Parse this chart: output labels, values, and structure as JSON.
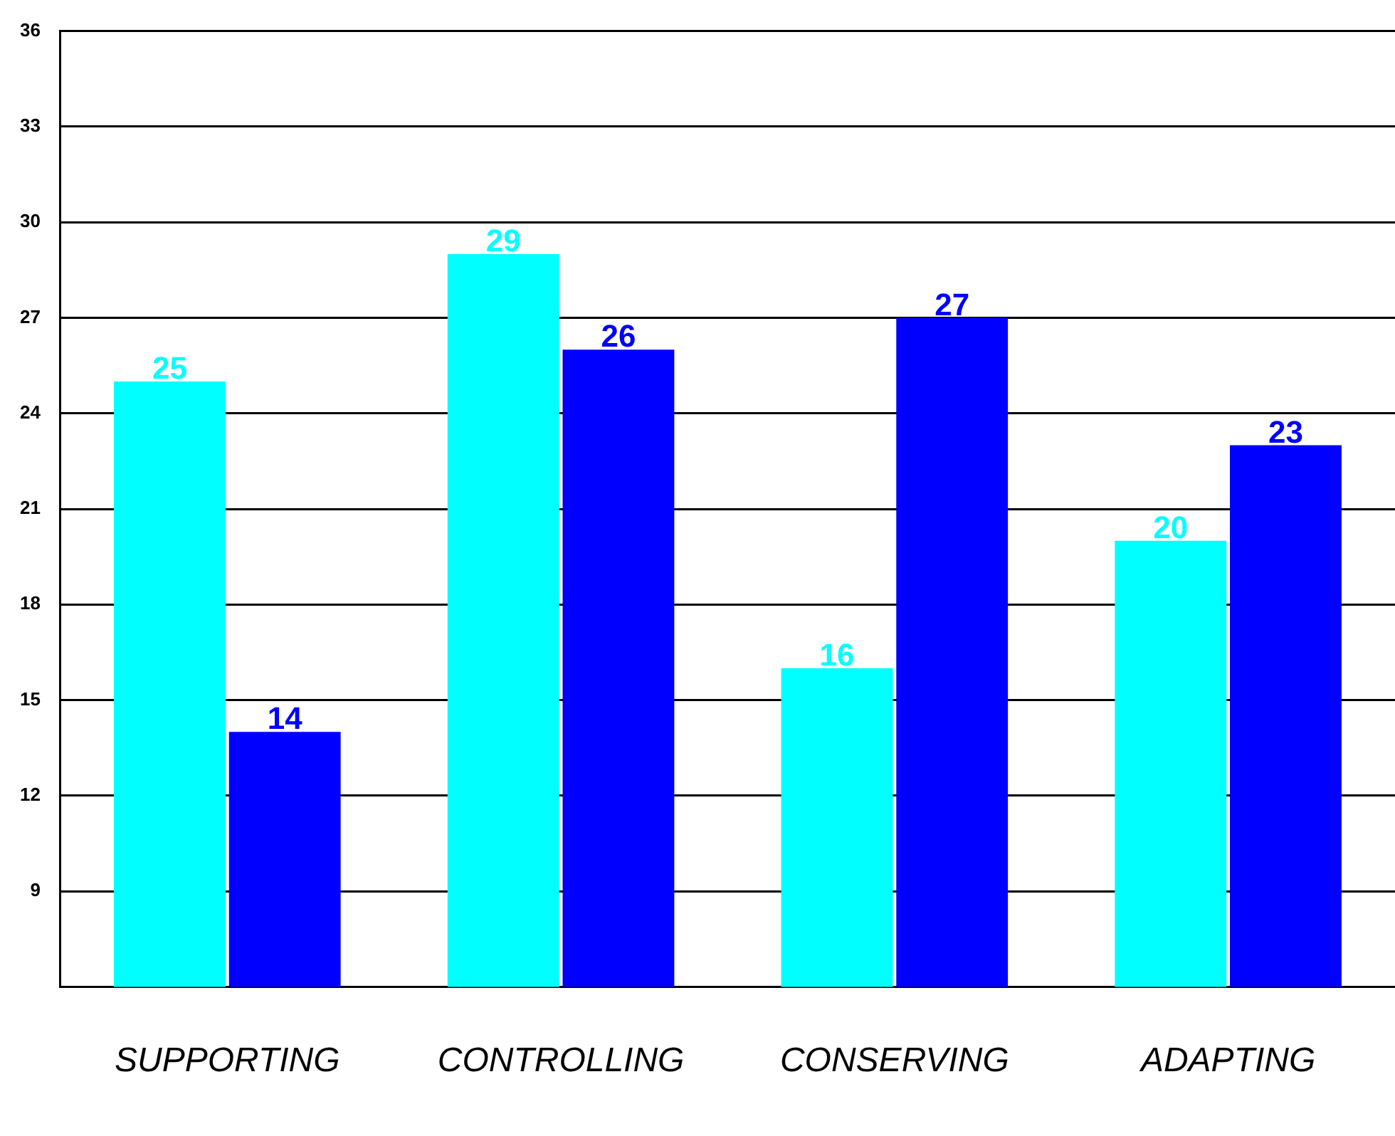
{
  "chart_data": {
    "type": "bar",
    "categories": [
      "SUPPORTING",
      "CONTROLLING",
      "CONSERVING",
      "ADAPTING"
    ],
    "series": [
      {
        "color": "#00ffff",
        "values": [
          25,
          29,
          16,
          20
        ]
      },
      {
        "color": "#0000ff",
        "values": [
          14,
          26,
          27,
          23
        ]
      }
    ],
    "ylim": [
      6,
      36
    ],
    "yticks": [
      9,
      12,
      15,
      18,
      21,
      24,
      27,
      30,
      33,
      36
    ],
    "grid": "y",
    "data_labels": true
  }
}
